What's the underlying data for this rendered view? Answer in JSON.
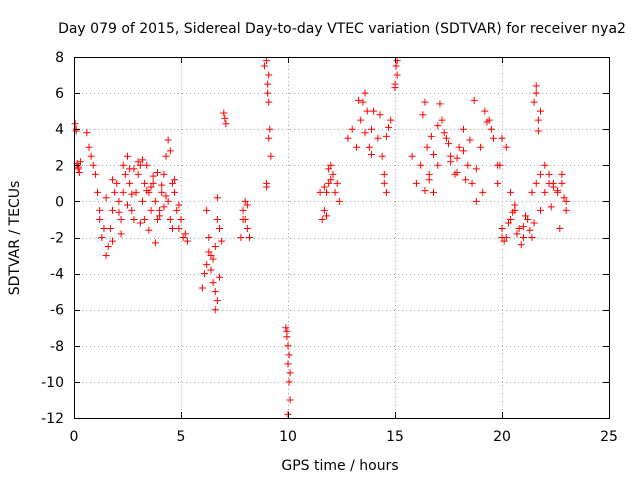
{
  "chart_data": {
    "type": "scatter",
    "title": "Day 079 of 2015, Sidereal Day-to-day VTEC variation (SDTVAR) for receiver nya2",
    "xlabel": "GPS time / hours",
    "ylabel": "SDTVAR / TECUs",
    "xlim": [
      0,
      25
    ],
    "ylim": [
      -12,
      8
    ],
    "xticks": [
      0,
      5,
      10,
      15,
      20,
      25
    ],
    "yticks": [
      -12,
      -10,
      -8,
      -6,
      -4,
      -2,
      0,
      2,
      4,
      6,
      8
    ],
    "grid": true,
    "marker": "plus",
    "color": "#ff0000",
    "series": [
      {
        "name": "SDTVAR",
        "x": [
          0.05,
          0.1,
          0.15,
          0.2,
          0.25,
          0.3,
          0.1,
          0.15,
          0.2,
          0.6,
          0.7,
          0.8,
          0.9,
          1.0,
          1.1,
          1.2,
          1.3,
          1.4,
          1.5,
          1.6,
          1.7,
          1.8,
          1.9,
          2.0,
          2.1,
          2.2,
          2.3,
          2.4,
          2.5,
          2.6,
          2.7,
          2.8,
          2.9,
          3.0,
          3.1,
          3.2,
          3.3,
          3.4,
          3.5,
          3.6,
          3.7,
          3.8,
          3.9,
          4.0,
          4.1,
          4.2,
          4.3,
          4.4,
          4.5,
          4.6,
          4.7,
          4.8,
          4.9,
          5.0,
          5.1,
          5.2,
          5.3,
          1.2,
          1.5,
          1.8,
          2.2,
          2.5,
          2.8,
          3.1,
          3.4,
          3.7,
          4.0,
          4.3,
          4.6,
          4.9,
          1.8,
          2.1,
          2.6,
          3.0,
          3.3,
          3.6,
          3.9,
          4.2,
          4.5,
          2.7,
          3.2,
          3.5,
          4.1,
          4.4,
          4.7,
          3.8,
          2.3,
          6.0,
          6.1,
          6.2,
          6.3,
          6.4,
          6.5,
          6.6,
          6.7,
          6.8,
          6.9,
          6.2,
          6.4,
          6.6,
          6.8,
          6.3,
          6.5,
          6.7,
          6.6,
          6.7,
          7.0,
          7.05,
          7.1,
          7.8,
          7.9,
          8.0,
          8.1,
          8.2,
          7.9,
          8.0,
          8.1,
          8.9,
          9.0,
          9.05,
          9.1,
          9.15,
          9.2,
          9.0,
          9.1,
          9.05,
          9.1,
          9.0,
          9.9,
          9.95,
          10.0,
          10.05,
          10.1,
          10.0,
          10.05,
          10.1,
          9.95,
          10.0,
          11.5,
          11.6,
          11.7,
          11.8,
          11.9,
          12.0,
          12.1,
          12.2,
          12.3,
          12.4,
          11.8,
          11.7,
          11.9,
          12.0,
          12.8,
          13.0,
          13.2,
          13.4,
          13.5,
          13.6,
          13.7,
          13.8,
          13.9,
          14.0,
          14.2,
          14.4,
          14.6,
          14.8,
          13.3,
          13.6,
          13.9,
          14.3,
          14.5,
          14.7,
          14.6,
          14.5,
          15.0,
          15.05,
          15.1,
          15.0,
          15.1,
          15.8,
          16.0,
          16.2,
          16.4,
          16.5,
          16.6,
          16.8,
          17.0,
          17.2,
          17.4,
          17.6,
          17.8,
          18.0,
          18.2,
          18.4,
          18.6,
          18.8,
          19.0,
          19.2,
          19.4,
          19.6,
          19.8,
          16.3,
          16.7,
          17.1,
          17.5,
          17.9,
          18.3,
          18.7,
          19.1,
          19.5,
          16.4,
          16.6,
          16.8,
          17.0,
          17.3,
          17.6,
          17.9,
          18.2,
          18.5,
          18.8,
          19.3,
          19.8,
          20.0,
          20.2,
          20.4,
          20.6,
          20.8,
          21.0,
          21.2,
          21.4,
          21.6,
          21.8,
          22.0,
          22.2,
          22.4,
          22.6,
          22.8,
          23.0,
          20.1,
          20.3,
          20.5,
          20.7,
          20.9,
          21.1,
          21.3,
          21.5,
          19.9,
          20.0,
          20.2,
          20.6,
          20.0,
          20.4,
          21.0,
          21.4,
          21.5,
          21.6,
          21.7,
          21.8,
          21.6,
          21.7,
          21.8,
          22.0,
          22.2,
          22.4,
          22.6,
          22.8,
          22.9,
          23.0,
          22.3,
          22.7
        ],
        "y": [
          4.3,
          4.0,
          2.1,
          1.8,
          1.6,
          2.2,
          3.9,
          2.0,
          1.9,
          3.8,
          3.0,
          2.5,
          2.0,
          1.5,
          0.5,
          -1.0,
          -2.0,
          -1.5,
          -3.0,
          -2.5,
          -1.5,
          -0.5,
          0.5,
          1.0,
          0.0,
          -1.0,
          0.5,
          1.5,
          2.5,
          1.0,
          -0.5,
          -1.0,
          0.5,
          1.5,
          2.0,
          0.0,
          1.0,
          2.0,
          0.5,
          -0.5,
          1.0,
          0.0,
          -1.0,
          -0.5,
          0.5,
          1.5,
          2.5,
          0.0,
          -1.0,
          1.0,
          0.5,
          -0.5,
          -1.5,
          -1.0,
          -2.0,
          -1.8,
          -2.2,
          -0.5,
          0.2,
          1.2,
          -1.8,
          -0.2,
          1.8,
          -1.2,
          0.6,
          1.4,
          -0.8,
          0.3,
          -1.5,
          -0.2,
          -2.2,
          -0.6,
          1.8,
          2.2,
          -1.0,
          0.8,
          1.6,
          -0.3,
          2.8,
          0.4,
          2.3,
          -1.6,
          0.9,
          3.4,
          1.2,
          -2.3,
          2.0,
          -4.8,
          -4.0,
          -3.5,
          -2.0,
          -3.0,
          -4.5,
          -2.5,
          -1.0,
          -1.5,
          -2.2,
          -0.5,
          -3.8,
          -5.0,
          -4.2,
          -2.8,
          -3.2,
          -5.5,
          -6.0,
          0.2,
          4.9,
          4.6,
          4.3,
          -2.0,
          -1.0,
          0.0,
          -1.5,
          -2.0,
          -0.5,
          -1.0,
          -0.2,
          7.5,
          7.8,
          6.5,
          5.5,
          4.0,
          2.5,
          1.0,
          7.0,
          6.0,
          3.5,
          0.8,
          -7.0,
          -7.5,
          -8.0,
          -8.5,
          -9.5,
          -9.0,
          -10.0,
          -11.0,
          -7.2,
          -11.8,
          0.5,
          -1.0,
          -0.5,
          0.5,
          1.0,
          2.0,
          1.5,
          0.5,
          1.0,
          0.0,
          -0.8,
          0.8,
          1.8,
          1.2,
          3.5,
          4.0,
          3.0,
          4.5,
          5.5,
          6.0,
          5.0,
          3.0,
          4.0,
          5.0,
          3.5,
          2.5,
          0.5,
          4.5,
          5.6,
          3.8,
          2.6,
          4.8,
          1.0,
          4.1,
          3.6,
          1.5,
          6.5,
          7.5,
          7.0,
          6.3,
          7.8,
          2.5,
          1.0,
          2.0,
          5.5,
          3.0,
          1.5,
          0.5,
          2.0,
          4.5,
          3.5,
          2.5,
          1.5,
          3.0,
          4.0,
          2.0,
          1.0,
          0.0,
          3.0,
          5.0,
          4.5,
          3.5,
          2.0,
          4.8,
          3.6,
          5.4,
          3.2,
          2.4,
          1.2,
          5.6,
          0.5,
          4.0,
          0.6,
          1.2,
          2.6,
          4.2,
          3.8,
          2.2,
          1.6,
          2.8,
          3.4,
          1.8,
          4.4,
          1.0,
          -1.5,
          -2.0,
          -1.0,
          -0.5,
          -1.5,
          -2.0,
          -1.0,
          0.5,
          1.0,
          -0.5,
          0.5,
          1.5,
          1.0,
          0.5,
          1.0,
          0.0,
          -2.2,
          -1.2,
          -0.6,
          -1.8,
          -2.4,
          -0.8,
          -1.6,
          -1.2,
          2.0,
          3.5,
          3.0,
          -0.2,
          -2.0,
          0.5,
          -1.4,
          -2.0,
          5.5,
          6.0,
          4.5,
          5.0,
          6.4,
          3.9,
          1.5,
          2.0,
          1.0,
          0.8,
          0.6,
          1.5,
          0.2,
          -0.5,
          -0.3,
          -1.5
        ]
      }
    ]
  }
}
